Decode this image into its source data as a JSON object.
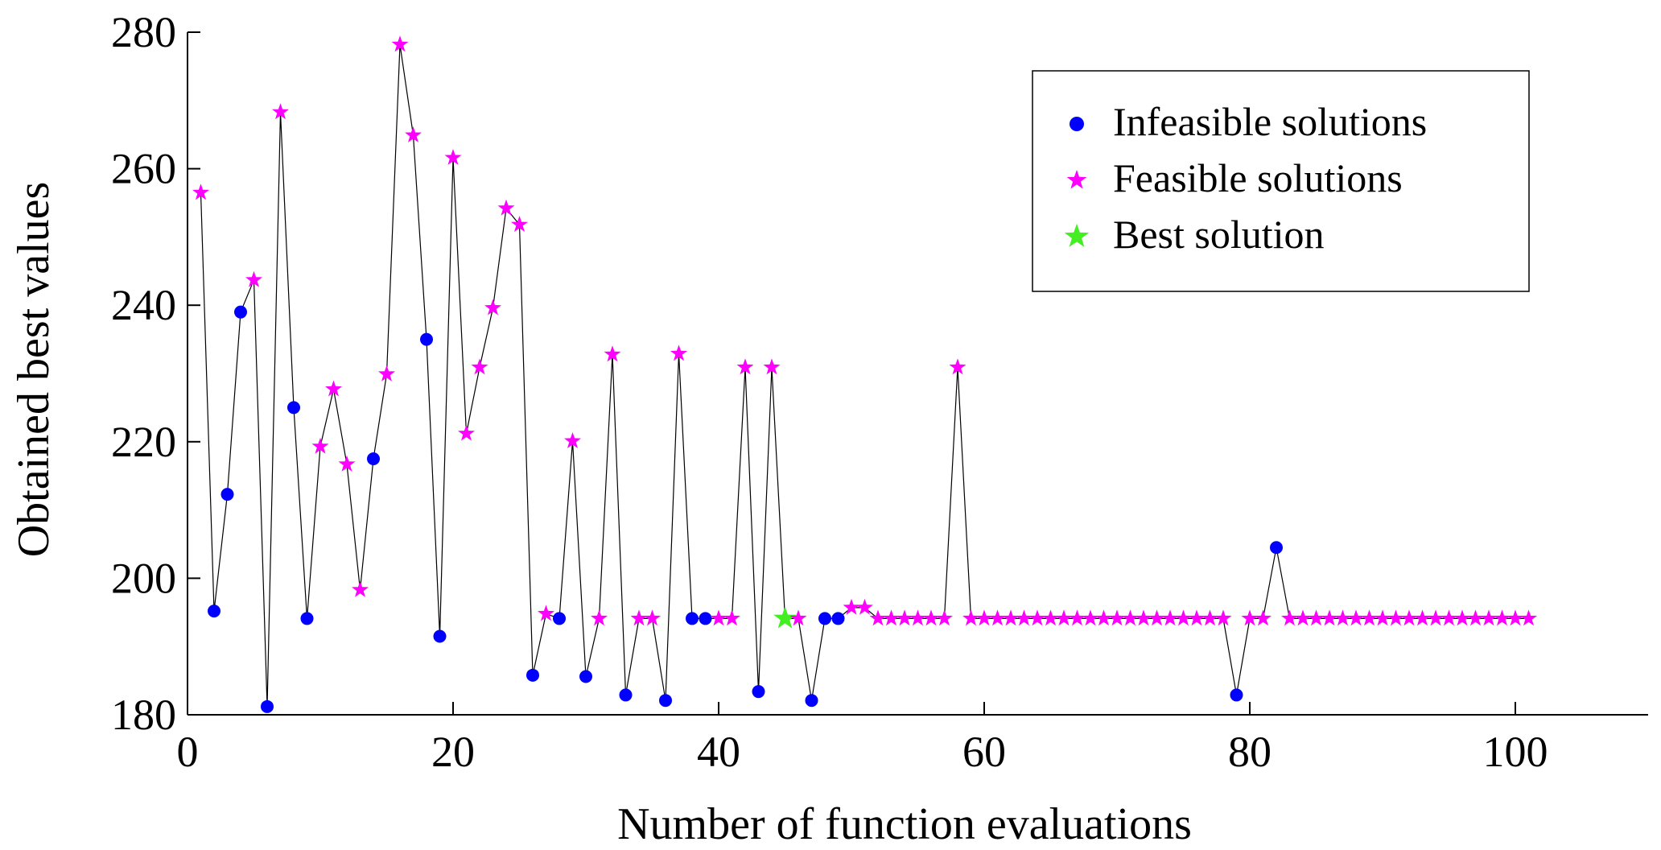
{
  "chart_data": {
    "type": "scatter",
    "title": "",
    "xlabel": "Number of function evaluations",
    "ylabel": "Obtained best values",
    "xlim": [
      0,
      110
    ],
    "ylim": [
      180,
      280
    ],
    "xticks": [
      0,
      20,
      40,
      60,
      80,
      100
    ],
    "yticks": [
      180,
      200,
      220,
      240,
      260,
      280
    ],
    "xtick_labels": [
      "0",
      "20",
      "40",
      "60",
      "80",
      "100"
    ],
    "ytick_labels": [
      "180",
      "200",
      "220",
      "240",
      "260",
      "280"
    ],
    "grid": false,
    "legend_position": "top-right",
    "legend": [
      {
        "label": "Infeasible solutions",
        "marker": "circle",
        "color": "#0000ff"
      },
      {
        "label": "Feasible solutions",
        "marker": "star",
        "color": "#ff00ff"
      },
      {
        "label": "Best solution",
        "marker": "star",
        "color": "#44ee22"
      }
    ],
    "line_color": "#000000",
    "points": [
      {
        "x": 1,
        "y": 256.5,
        "class": "feasible"
      },
      {
        "x": 2,
        "y": 195.2,
        "class": "infeasible"
      },
      {
        "x": 3,
        "y": 212.3,
        "class": "infeasible"
      },
      {
        "x": 4,
        "y": 239.0,
        "class": "infeasible"
      },
      {
        "x": 5,
        "y": 243.7,
        "class": "feasible"
      },
      {
        "x": 6,
        "y": 181.2,
        "class": "infeasible"
      },
      {
        "x": 7,
        "y": 268.3,
        "class": "feasible"
      },
      {
        "x": 8,
        "y": 225.0,
        "class": "infeasible"
      },
      {
        "x": 9,
        "y": 194.1,
        "class": "infeasible"
      },
      {
        "x": 10,
        "y": 219.3,
        "class": "feasible"
      },
      {
        "x": 11,
        "y": 227.7,
        "class": "feasible"
      },
      {
        "x": 12,
        "y": 216.7,
        "class": "feasible"
      },
      {
        "x": 13,
        "y": 198.3,
        "class": "feasible"
      },
      {
        "x": 14,
        "y": 217.5,
        "class": "infeasible"
      },
      {
        "x": 15,
        "y": 229.9,
        "class": "feasible"
      },
      {
        "x": 16,
        "y": 278.2,
        "class": "feasible"
      },
      {
        "x": 17,
        "y": 264.9,
        "class": "feasible"
      },
      {
        "x": 18,
        "y": 235.0,
        "class": "infeasible"
      },
      {
        "x": 19,
        "y": 191.5,
        "class": "infeasible"
      },
      {
        "x": 20,
        "y": 261.6,
        "class": "feasible"
      },
      {
        "x": 21,
        "y": 221.2,
        "class": "feasible"
      },
      {
        "x": 22,
        "y": 230.9,
        "class": "feasible"
      },
      {
        "x": 23,
        "y": 239.6,
        "class": "feasible"
      },
      {
        "x": 24,
        "y": 254.2,
        "class": "feasible"
      },
      {
        "x": 25,
        "y": 251.8,
        "class": "feasible"
      },
      {
        "x": 26,
        "y": 185.8,
        "class": "infeasible"
      },
      {
        "x": 27,
        "y": 194.8,
        "class": "feasible"
      },
      {
        "x": 28,
        "y": 194.1,
        "class": "infeasible"
      },
      {
        "x": 29,
        "y": 220.1,
        "class": "feasible"
      },
      {
        "x": 30,
        "y": 185.6,
        "class": "infeasible"
      },
      {
        "x": 31,
        "y": 194.1,
        "class": "feasible"
      },
      {
        "x": 32,
        "y": 232.8,
        "class": "feasible"
      },
      {
        "x": 33,
        "y": 182.9,
        "class": "infeasible"
      },
      {
        "x": 34,
        "y": 194.1,
        "class": "feasible"
      },
      {
        "x": 35,
        "y": 194.1,
        "class": "feasible"
      },
      {
        "x": 36,
        "y": 182.1,
        "class": "infeasible"
      },
      {
        "x": 37,
        "y": 232.9,
        "class": "feasible"
      },
      {
        "x": 38,
        "y": 194.1,
        "class": "infeasible"
      },
      {
        "x": 39,
        "y": 194.1,
        "class": "infeasible"
      },
      {
        "x": 40,
        "y": 194.1,
        "class": "feasible"
      },
      {
        "x": 41,
        "y": 194.1,
        "class": "feasible"
      },
      {
        "x": 42,
        "y": 230.9,
        "class": "feasible"
      },
      {
        "x": 43,
        "y": 183.4,
        "class": "infeasible"
      },
      {
        "x": 44,
        "y": 230.9,
        "class": "feasible"
      },
      {
        "x": 45,
        "y": 194.1,
        "class": "best"
      },
      {
        "x": 46,
        "y": 194.1,
        "class": "feasible"
      },
      {
        "x": 47,
        "y": 182.1,
        "class": "infeasible"
      },
      {
        "x": 48,
        "y": 194.1,
        "class": "infeasible"
      },
      {
        "x": 49,
        "y": 194.1,
        "class": "infeasible"
      },
      {
        "x": 50,
        "y": 195.7,
        "class": "feasible"
      },
      {
        "x": 51,
        "y": 195.7,
        "class": "feasible"
      },
      {
        "x": 52,
        "y": 194.1,
        "class": "feasible"
      },
      {
        "x": 53,
        "y": 194.1,
        "class": "feasible"
      },
      {
        "x": 54,
        "y": 194.1,
        "class": "feasible"
      },
      {
        "x": 55,
        "y": 194.1,
        "class": "feasible"
      },
      {
        "x": 56,
        "y": 194.1,
        "class": "feasible"
      },
      {
        "x": 57,
        "y": 194.1,
        "class": "feasible"
      },
      {
        "x": 58,
        "y": 230.9,
        "class": "feasible"
      },
      {
        "x": 59,
        "y": 194.1,
        "class": "feasible"
      },
      {
        "x": 60,
        "y": 194.1,
        "class": "feasible"
      },
      {
        "x": 61,
        "y": 194.1,
        "class": "feasible"
      },
      {
        "x": 62,
        "y": 194.1,
        "class": "feasible"
      },
      {
        "x": 63,
        "y": 194.1,
        "class": "feasible"
      },
      {
        "x": 64,
        "y": 194.1,
        "class": "feasible"
      },
      {
        "x": 65,
        "y": 194.1,
        "class": "feasible"
      },
      {
        "x": 66,
        "y": 194.1,
        "class": "feasible"
      },
      {
        "x": 67,
        "y": 194.1,
        "class": "feasible"
      },
      {
        "x": 68,
        "y": 194.1,
        "class": "feasible"
      },
      {
        "x": 69,
        "y": 194.1,
        "class": "feasible"
      },
      {
        "x": 70,
        "y": 194.1,
        "class": "feasible"
      },
      {
        "x": 71,
        "y": 194.1,
        "class": "feasible"
      },
      {
        "x": 72,
        "y": 194.1,
        "class": "feasible"
      },
      {
        "x": 73,
        "y": 194.1,
        "class": "feasible"
      },
      {
        "x": 74,
        "y": 194.1,
        "class": "feasible"
      },
      {
        "x": 75,
        "y": 194.1,
        "class": "feasible"
      },
      {
        "x": 76,
        "y": 194.1,
        "class": "feasible"
      },
      {
        "x": 77,
        "y": 194.1,
        "class": "feasible"
      },
      {
        "x": 78,
        "y": 194.1,
        "class": "feasible"
      },
      {
        "x": 79,
        "y": 182.9,
        "class": "infeasible"
      },
      {
        "x": 80,
        "y": 194.1,
        "class": "feasible"
      },
      {
        "x": 81,
        "y": 194.1,
        "class": "feasible"
      },
      {
        "x": 82,
        "y": 204.5,
        "class": "infeasible"
      },
      {
        "x": 83,
        "y": 194.1,
        "class": "feasible"
      },
      {
        "x": 84,
        "y": 194.1,
        "class": "feasible"
      },
      {
        "x": 85,
        "y": 194.1,
        "class": "feasible"
      },
      {
        "x": 86,
        "y": 194.1,
        "class": "feasible"
      },
      {
        "x": 87,
        "y": 194.1,
        "class": "feasible"
      },
      {
        "x": 88,
        "y": 194.1,
        "class": "feasible"
      },
      {
        "x": 89,
        "y": 194.1,
        "class": "feasible"
      },
      {
        "x": 90,
        "y": 194.1,
        "class": "feasible"
      },
      {
        "x": 91,
        "y": 194.1,
        "class": "feasible"
      },
      {
        "x": 92,
        "y": 194.1,
        "class": "feasible"
      },
      {
        "x": 93,
        "y": 194.1,
        "class": "feasible"
      },
      {
        "x": 94,
        "y": 194.1,
        "class": "feasible"
      },
      {
        "x": 95,
        "y": 194.1,
        "class": "feasible"
      },
      {
        "x": 96,
        "y": 194.1,
        "class": "feasible"
      },
      {
        "x": 97,
        "y": 194.1,
        "class": "feasible"
      },
      {
        "x": 98,
        "y": 194.1,
        "class": "feasible"
      },
      {
        "x": 99,
        "y": 194.1,
        "class": "feasible"
      },
      {
        "x": 100,
        "y": 194.1,
        "class": "feasible"
      },
      {
        "x": 101,
        "y": 194.1,
        "class": "feasible"
      }
    ]
  }
}
